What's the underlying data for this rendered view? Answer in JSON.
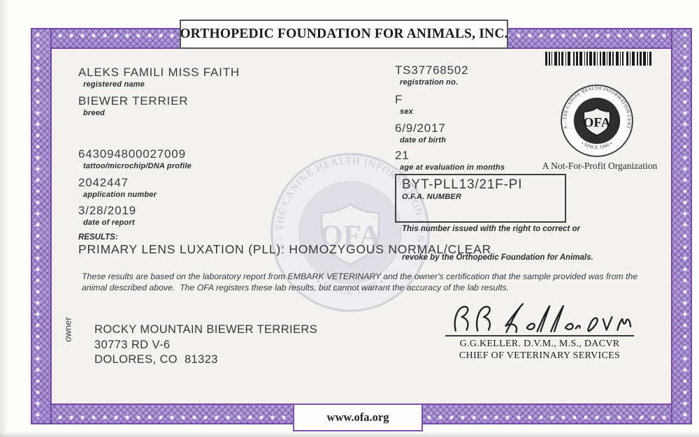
{
  "title": "ORTHOPEDIC FOUNDATION FOR ANIMALS, INC.",
  "footer_url": "www.ofa.org",
  "fields_left": [
    {
      "value": "ALEKS FAMILI MISS FAITH",
      "label": "registered name"
    },
    {
      "value": "BIEWER TERRIER",
      "label": "breed"
    },
    {
      "value": "643094800027009",
      "label": "tattoo/microchip/DNA profile"
    },
    {
      "value": "2042447",
      "label": "application number"
    },
    {
      "value": "3/28/2019",
      "label": "date of report"
    }
  ],
  "fields_right": [
    {
      "value": "TS37768502",
      "label": "registration no."
    },
    {
      "value": "F",
      "label": "sex"
    },
    {
      "value": "6/9/2017",
      "label": "date of birth"
    },
    {
      "value": "21",
      "label": "age at evaluation in months"
    }
  ],
  "ofa_number": {
    "value": "BYT-PLL13/21F-PI",
    "label": "O.F.A. NUMBER",
    "note_line1": "This number issued with the right to correct or",
    "note_line2": "revoke by the Orthopedic Foundation for Animals."
  },
  "results": {
    "label": "RESULTS:",
    "value": "PRIMARY LENS LUXATION (PLL): HOMOZYGOUS NORMAL/CLEAR"
  },
  "disclaimer_line1": "These results are based on the laboratory report from EMBARK VETERINARY and the owner's certification that the sample provided was from the",
  "disclaimer_line2": "animal described above.  The OFA registers these lab results, but cannot warrant the accuracy of the lab results.",
  "owner": {
    "side_label": "owner",
    "name": "ROCKY MOUNTAIN BIEWER TERRIERS",
    "address_line1": "30773 RD V-6",
    "address_line2": "DOLORES, CO  81323"
  },
  "signature": {
    "name_line": "G.G.KELLER. D.V.M., M.S., DACVR",
    "title_line": "CHIEF OF VETERINARY SERVICES"
  },
  "seal": {
    "ring_text": "OFA – THE CANINE HEALTH INFORMATION CENTER",
    "bottom_text": "• SINCE 1966 •",
    "shield_text": "OFA",
    "tagline": "A Not-For-Profit Organization"
  },
  "colors": {
    "border_purple": "#b2a0d8",
    "border_dark": "#7748a8",
    "paper": "#f3f2ee",
    "ink": "#38383c"
  }
}
